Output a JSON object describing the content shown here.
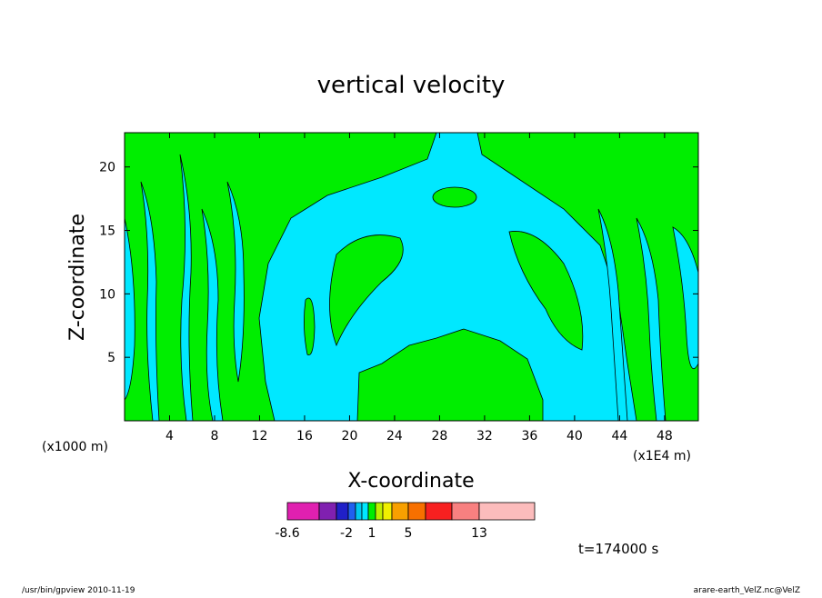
{
  "chart_data": {
    "type": "contour",
    "title": "vertical velocity",
    "x_label": "X-coordinate",
    "y_label": "Z-coordinate",
    "x_unit": "(x1000 m)",
    "x_scale_note": "(x1E4 m)",
    "xlim": [
      0,
      51
    ],
    "xticks": [
      4,
      8,
      12,
      16,
      20,
      24,
      28,
      32,
      36,
      40,
      44,
      48
    ],
    "ylim": [
      0,
      22.7
    ],
    "yticks": [
      5,
      10,
      15,
      20
    ],
    "colorbar": {
      "colors": [
        "#e020b0",
        "#8020b0",
        "#2020c8",
        "#2060f0",
        "#00c8f0",
        "#00e8ff",
        "#00ee00",
        "#c0f000",
        "#f0f000",
        "#f8a000",
        "#f87000",
        "#f82020",
        "#f88080",
        "#fcbcbc"
      ],
      "ticks": [
        -8.6,
        -2,
        1,
        5,
        13
      ]
    },
    "time_label": "t=174000 s",
    "footer_left": "/usr/bin/gpview   2010-11-19",
    "footer_right": "arare-earth_VelZ.nc@VelZ"
  }
}
